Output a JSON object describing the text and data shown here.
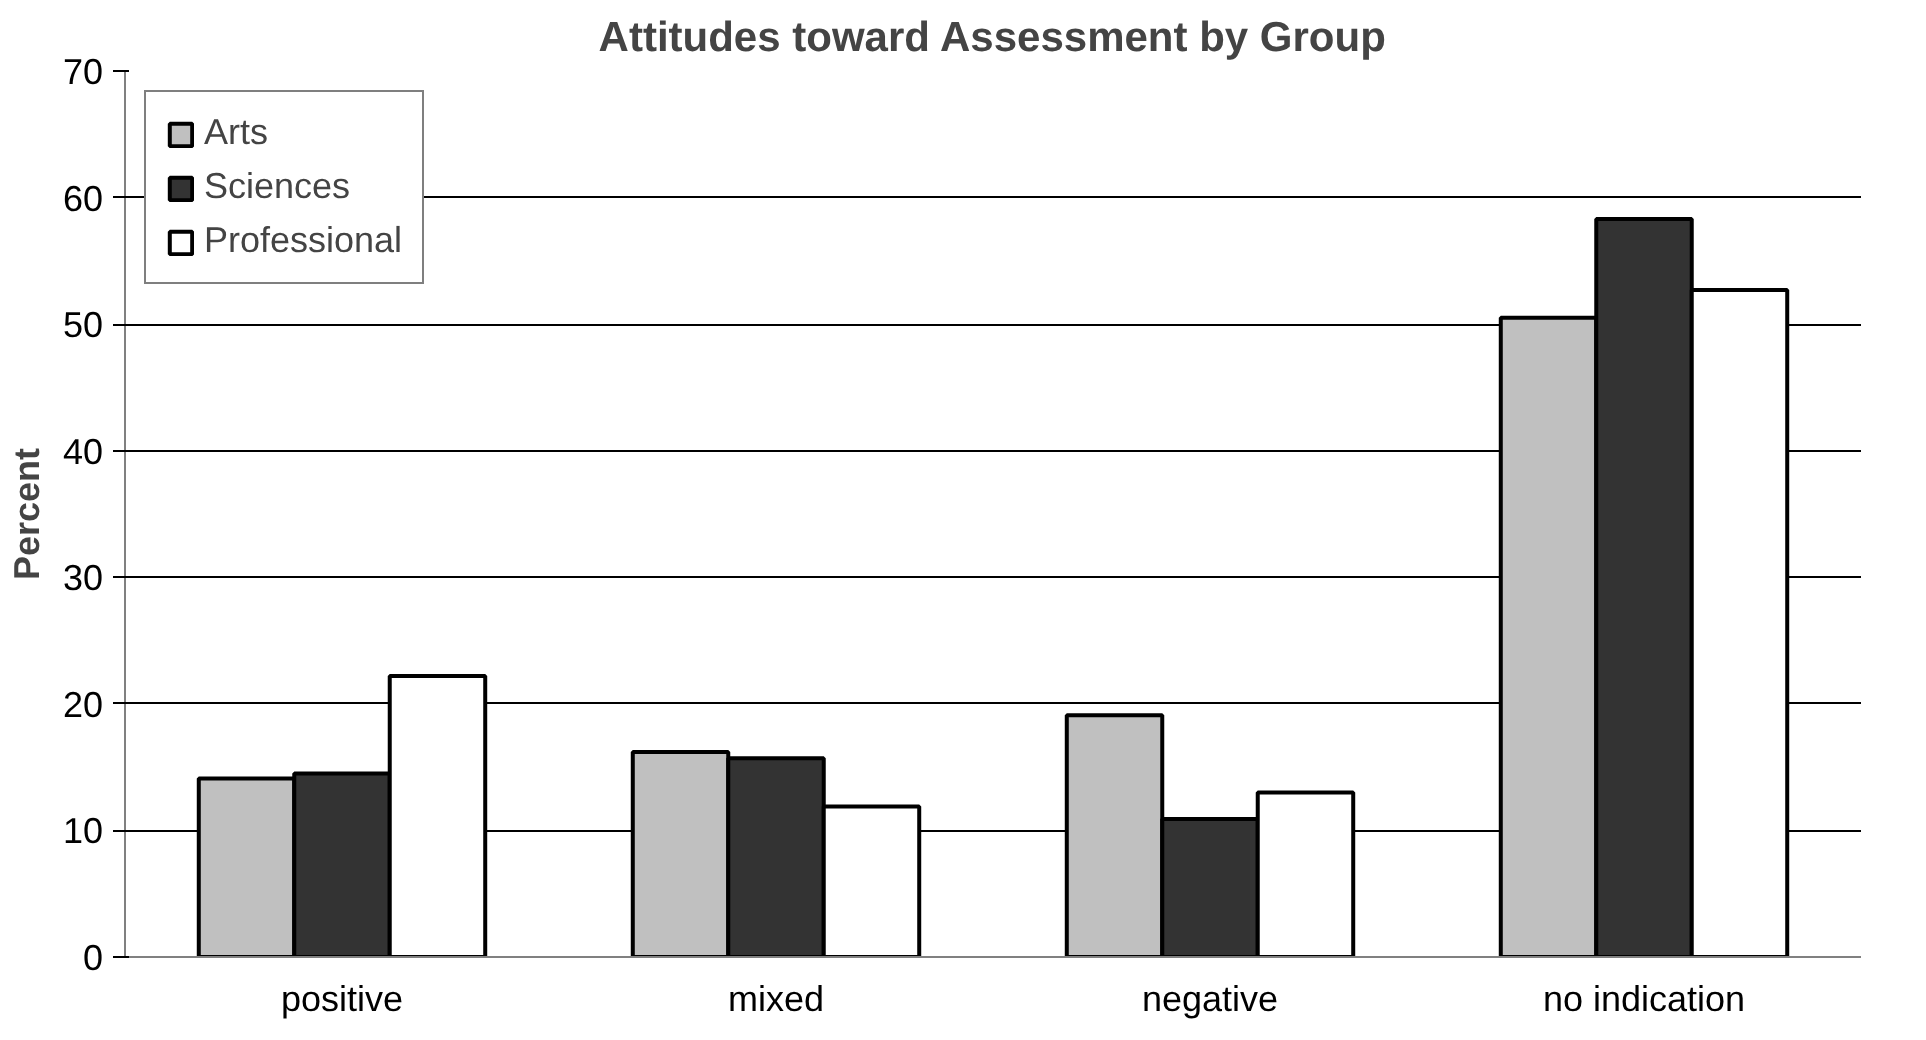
{
  "chart_data": {
    "type": "bar",
    "title": "Attitudes toward Assessment by Group",
    "ylabel": "Percent",
    "categories": [
      "positive",
      "mixed",
      "negative",
      "no indication"
    ],
    "series": [
      {
        "name": "Arts",
        "color": "#c0c0c0",
        "values": [
          14.1,
          16.2,
          19.1,
          50.5
        ]
      },
      {
        "name": "Sciences",
        "color": "#333333",
        "values": [
          14.5,
          15.7,
          10.9,
          58.3
        ]
      },
      {
        "name": "Professional",
        "color": "#ffffff",
        "values": [
          22.2,
          11.9,
          13.0,
          52.7
        ]
      }
    ],
    "ylim": [
      0,
      70
    ],
    "yticks": [
      0,
      10,
      20,
      30,
      40,
      50,
      60,
      70
    ],
    "grid": "y",
    "legend": "top left"
  }
}
